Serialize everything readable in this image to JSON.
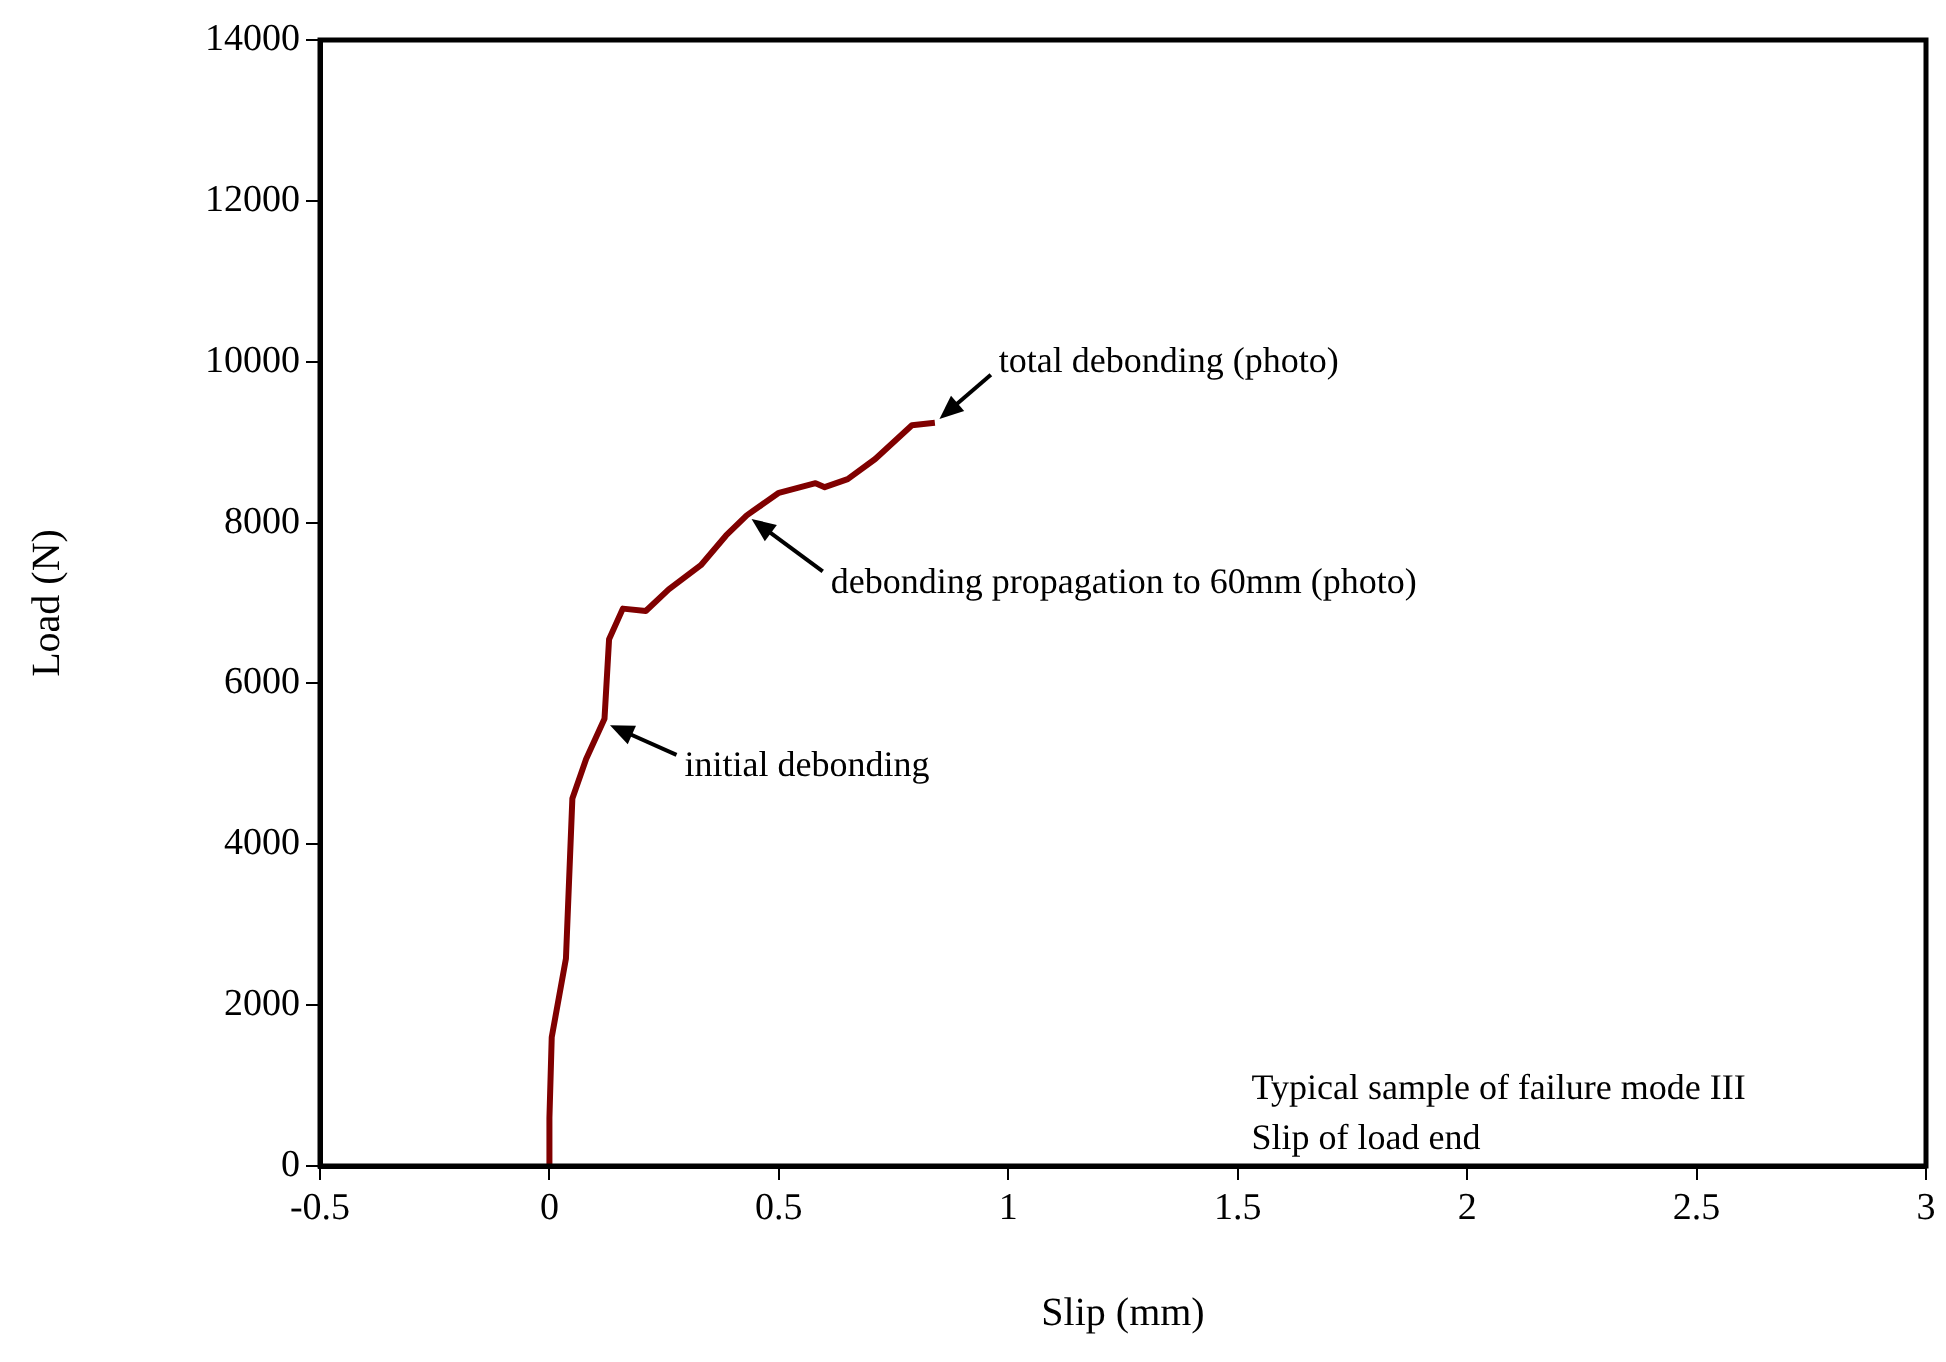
{
  "chart_data": {
    "type": "line",
    "xlabel": "Slip (mm)",
    "ylabel": "Load (N)",
    "xlim": [
      -0.5,
      3
    ],
    "xticks": [
      -0.5,
      0,
      0.5,
      1,
      1.5,
      2,
      2.5,
      3
    ],
    "ylim": [
      0,
      14000
    ],
    "yticks": [
      0,
      2000,
      4000,
      6000,
      8000,
      10000,
      12000,
      14000
    ],
    "grid": false,
    "legend": false,
    "marker": "none",
    "line_style": "solid",
    "series": [
      {
        "color": "#800000",
        "x": [
          0,
          0.0,
          0.005,
          0.036,
          0.05,
          0.08,
          0.12,
          0.13,
          0.16,
          0.21,
          0.26,
          0.33,
          0.385,
          0.43,
          0.5,
          0.58,
          0.6,
          0.65,
          0.71,
          0.79,
          0.84
        ],
        "values": [
          0,
          600,
          1600,
          2580,
          4570,
          5060,
          5560,
          6550,
          6930,
          6900,
          7170,
          7470,
          7840,
          8090,
          8370,
          8490,
          8440,
          8540,
          8790,
          9210,
          9240
        ]
      }
    ],
    "annotations": [
      {
        "text": "initial debonding",
        "x": 0.12,
        "y": 5510
      },
      {
        "text": "debonding propagation to 60mm (photo)",
        "x": 0.43,
        "y": 8090
      },
      {
        "text": "total debonding (photo)",
        "x": 0.84,
        "y": 9240
      },
      "Typical sample of failure mode III",
      "Slip of load end"
    ]
  }
}
